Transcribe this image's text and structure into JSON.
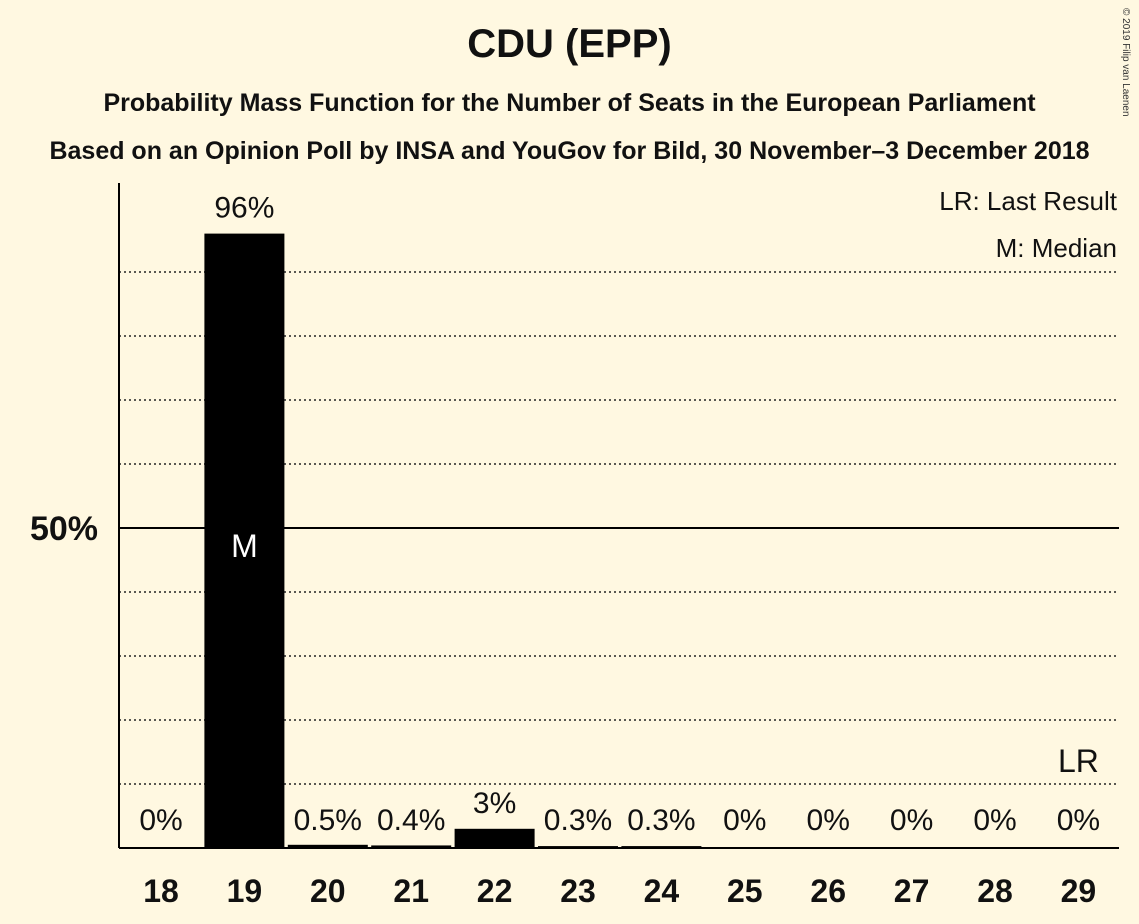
{
  "title": "CDU (EPP)",
  "subtitle": "Probability Mass Function for the Number of Seats in the European Parliament",
  "subtitle2": "Based on an Opinion Poll by INSA and YouGov for Bild, 30 November–3 December 2018",
  "copyright": "© 2019 Filip van Laenen",
  "legend": {
    "last_result": "LR: Last Result",
    "median": "M: Median"
  },
  "chart_data": {
    "type": "bar",
    "categories": [
      "18",
      "19",
      "20",
      "21",
      "22",
      "23",
      "24",
      "25",
      "26",
      "27",
      "28",
      "29"
    ],
    "values": [
      0,
      96,
      0.5,
      0.4,
      3,
      0.3,
      0.3,
      0,
      0,
      0,
      0,
      0
    ],
    "value_labels": [
      "0%",
      "96%",
      "0.5%",
      "0.4%",
      "3%",
      "0.3%",
      "0.3%",
      "0%",
      "0%",
      "0%",
      "0%",
      "0%"
    ],
    "ylim": [
      0,
      100
    ],
    "y_tick_label": "50%",
    "y_tick_value": 50,
    "gridlines": [
      10,
      20,
      30,
      40,
      60,
      70,
      80,
      90
    ],
    "median_category": "19",
    "median_marker": "M",
    "last_result_category": "29",
    "last_result_marker": "LR",
    "colors": {
      "bar": "#000000",
      "background": "#FFF8E1",
      "median_text": "#FFFFFF"
    }
  }
}
